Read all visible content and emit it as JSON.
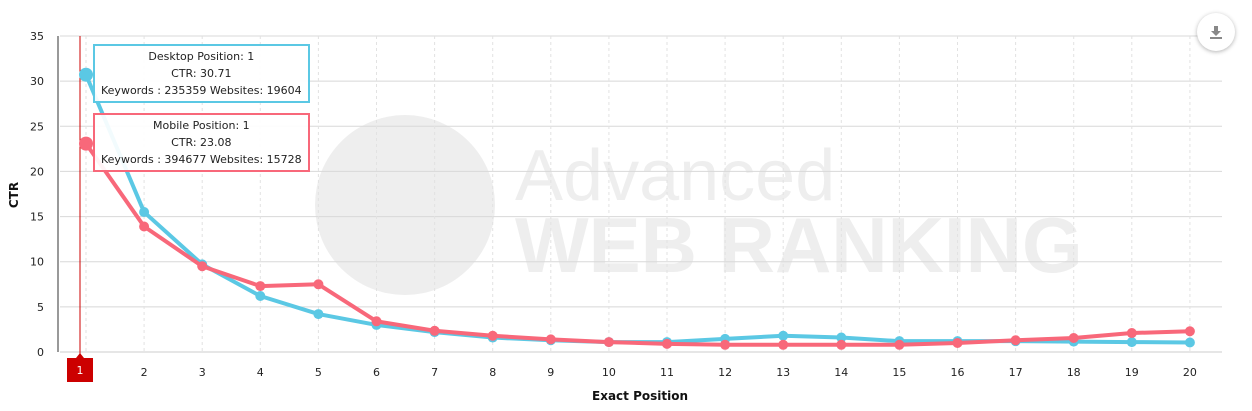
{
  "chart_data": {
    "type": "line",
    "xlabel": "Exact Position",
    "ylabel": "CTR",
    "ylim": [
      0,
      35
    ],
    "yticks": [
      0,
      5,
      10,
      15,
      20,
      25,
      30,
      35
    ],
    "x": [
      1,
      2,
      3,
      4,
      5,
      6,
      7,
      8,
      9,
      10,
      11,
      12,
      13,
      14,
      15,
      16,
      17,
      18,
      19,
      20
    ],
    "grid": true,
    "series": [
      {
        "name": "Desktop",
        "color": "#5bc8e4",
        "values": [
          30.71,
          15.5,
          9.7,
          6.2,
          4.2,
          3.0,
          2.2,
          1.6,
          1.3,
          1.1,
          1.1,
          1.45,
          1.8,
          1.6,
          1.2,
          1.2,
          1.2,
          1.15,
          1.1,
          1.05
        ]
      },
      {
        "name": "Mobile",
        "color": "#f8687a",
        "values": [
          23.08,
          13.9,
          9.5,
          7.3,
          7.5,
          3.4,
          2.35,
          1.8,
          1.4,
          1.1,
          0.9,
          0.8,
          0.8,
          0.8,
          0.8,
          1.0,
          1.3,
          1.55,
          2.1,
          2.3
        ]
      }
    ],
    "crosshair": {
      "x": 1,
      "label": "1",
      "color": "#cc0000"
    },
    "tooltips": [
      {
        "series": "Desktop",
        "line1": "Desktop Position: 1",
        "line2": "CTR: 30.71",
        "line3": "Keywords : 235359 Websites: 19604"
      },
      {
        "series": "Mobile",
        "line1": "Mobile Position: 1",
        "line2": "CTR: 23.08",
        "line3": "Keywords : 394677 Websites: 15728"
      }
    ],
    "watermark": "Advanced WEB RANKING"
  },
  "toolbar": {
    "download_icon": "download-icon"
  }
}
